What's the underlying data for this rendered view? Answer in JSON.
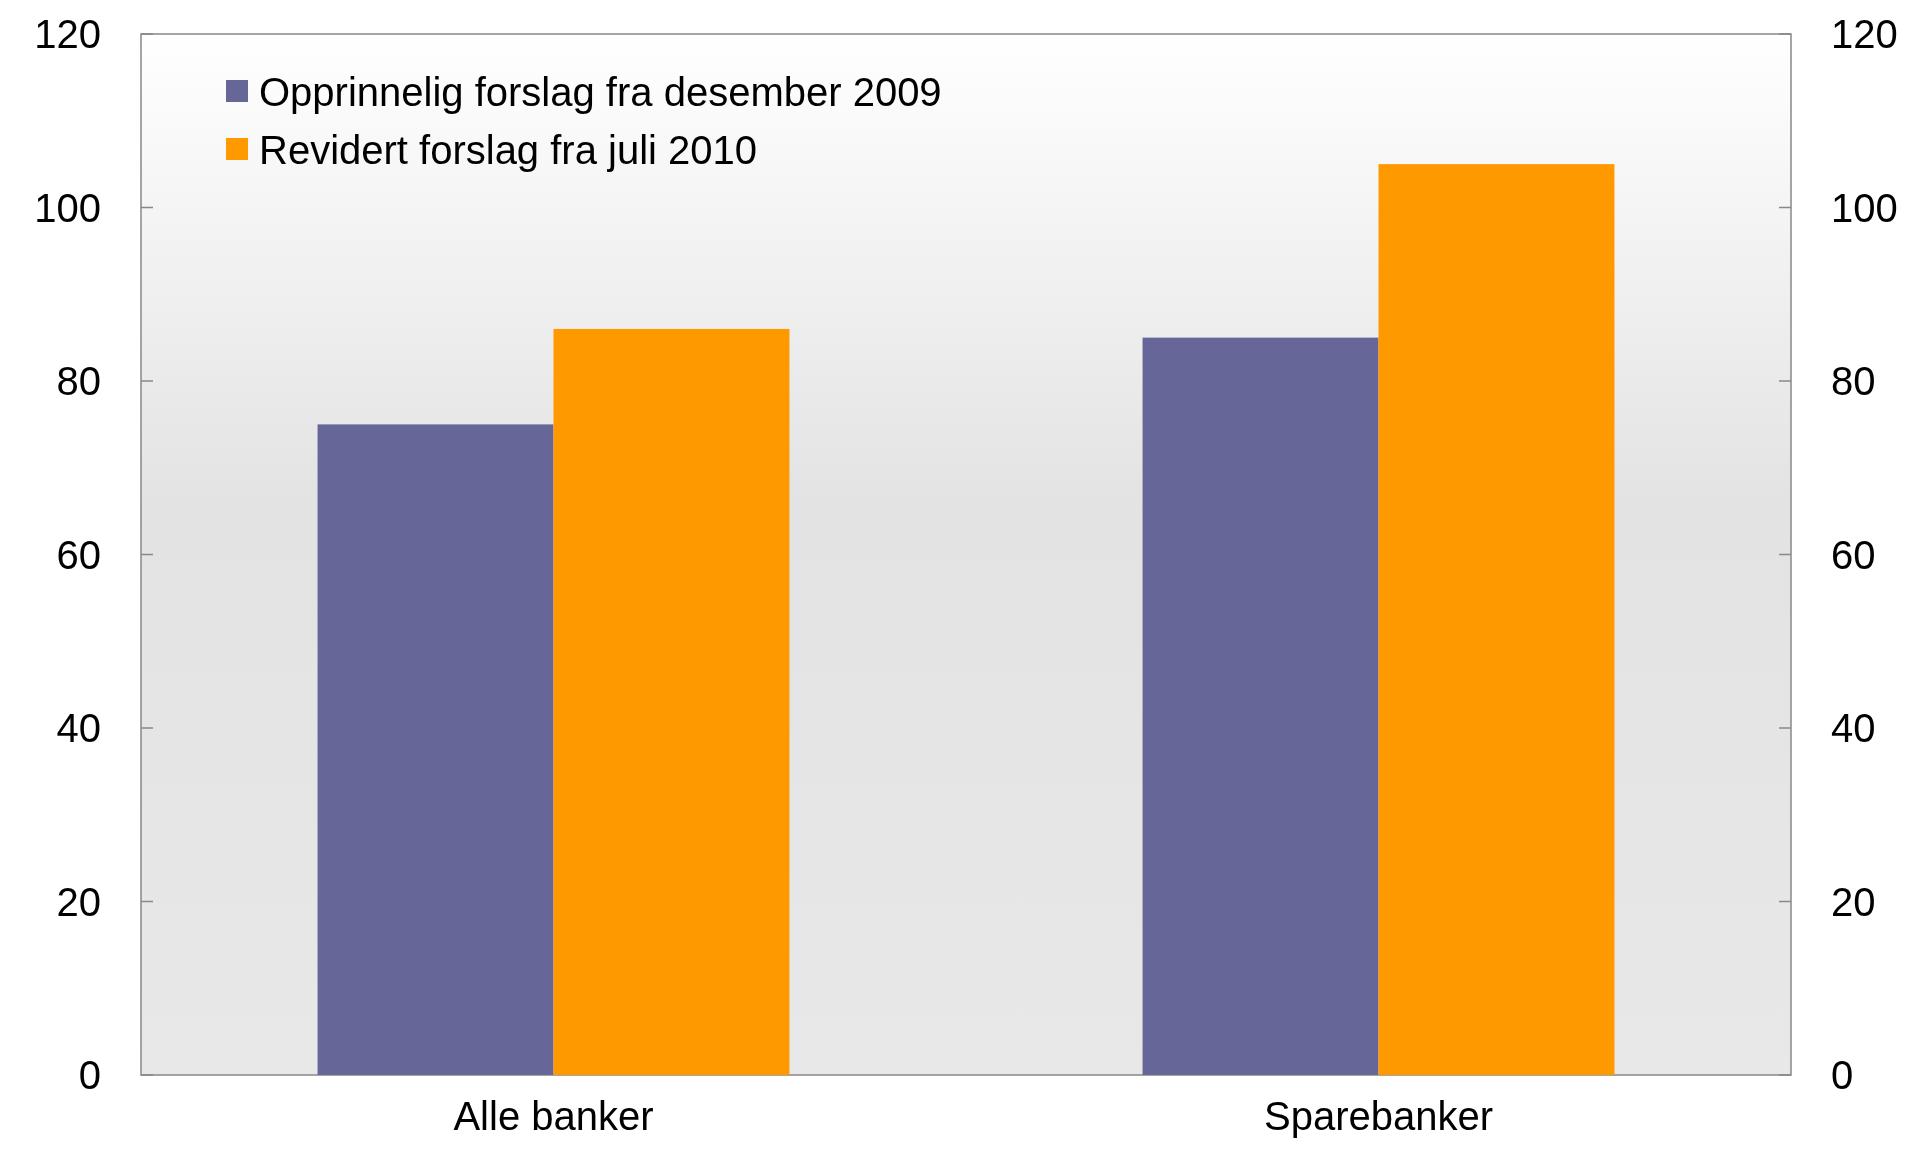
{
  "chart_data": {
    "type": "bar",
    "categories": [
      "Alle banker",
      "Sparebanker"
    ],
    "series": [
      {
        "name": "Opprinnelig forslag fra desember 2009",
        "color": "#666699",
        "values": [
          75,
          85
        ]
      },
      {
        "name": "Revidert forslag fra juli 2010",
        "color": "#ff9900",
        "values": [
          86,
          105
        ]
      }
    ],
    "ylim": [
      0,
      120
    ],
    "yticks": [
      0,
      20,
      40,
      60,
      80,
      100,
      120
    ],
    "y2lim": [
      0,
      120
    ],
    "y2ticks": [
      0,
      20,
      40,
      60,
      80,
      100,
      120
    ],
    "legend": "top left",
    "grid": false
  }
}
